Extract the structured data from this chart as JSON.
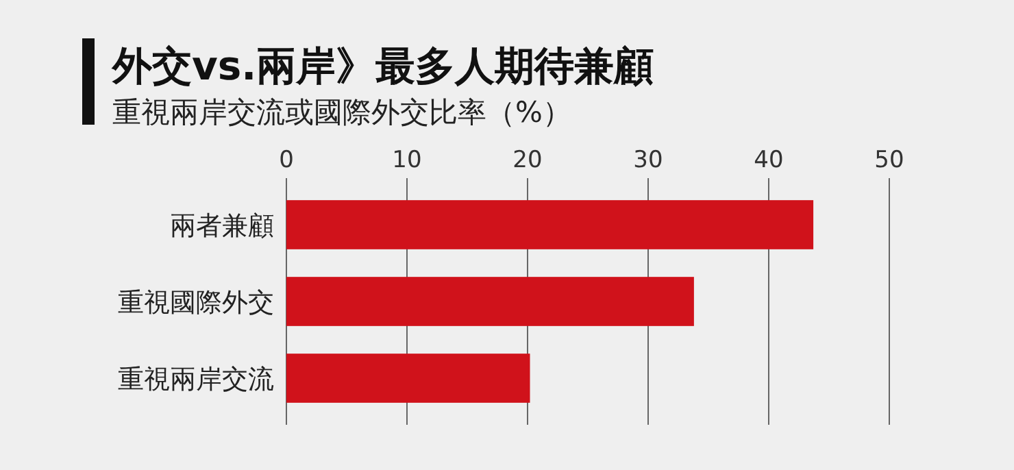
{
  "chart_data": {
    "type": "bar",
    "orientation": "horizontal",
    "title": "外交vs.兩岸》最多人期待兼顧",
    "subtitle": "重視兩岸交流或國際外交比率（%）",
    "categories": [
      "兩者兼顧",
      "重視國際外交",
      "重視兩岸交流"
    ],
    "values": [
      43.7,
      33.8,
      20.2
    ],
    "color": "#d0121b",
    "xlim": [
      0,
      50
    ],
    "xticks": [
      0,
      10,
      20,
      30,
      40,
      50
    ],
    "grid": "x"
  }
}
